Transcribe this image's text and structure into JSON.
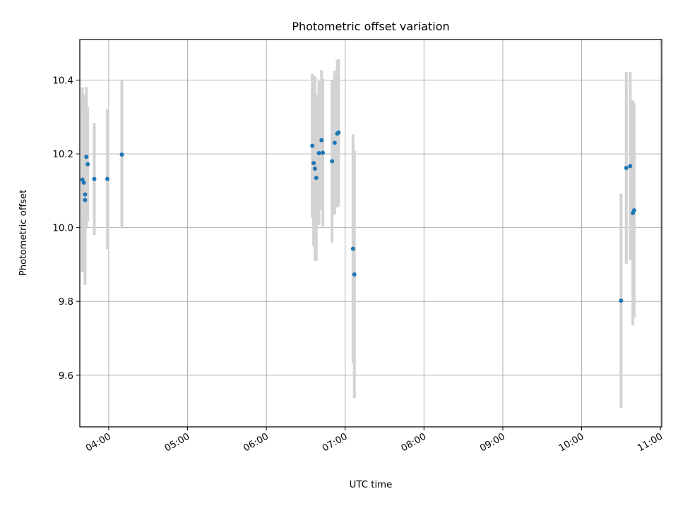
{
  "chart_data": {
    "type": "scatter",
    "title": "Photometric offset variation",
    "xlabel": "UTC time",
    "ylabel": "Photometric offset",
    "x_ticks": [
      "04:00",
      "05:00",
      "06:00",
      "07:00",
      "08:00",
      "09:00",
      "10:00",
      "11:00"
    ],
    "y_ticks": [
      "9.6",
      "9.8",
      "10.0",
      "10.2",
      "10.4"
    ],
    "y_tick_values": [
      9.6,
      9.8,
      10.0,
      10.2,
      10.4
    ],
    "xlim": [
      "03:38",
      "11:01"
    ],
    "ylim": [
      9.46,
      10.51
    ],
    "grid": true,
    "marker_color": "#1f77b4",
    "errorbar_color": "#d3d3d3",
    "points": [
      {
        "x": "03:40",
        "y": 10.13,
        "err": 0.25
      },
      {
        "x": "03:41",
        "y": 10.122,
        "err": 0.24
      },
      {
        "x": "03:42",
        "y": 10.09,
        "err": 0.2
      },
      {
        "x": "03:42",
        "y": 10.075,
        "err": 0.23
      },
      {
        "x": "03:43",
        "y": 10.192,
        "err": 0.19
      },
      {
        "x": "03:44",
        "y": 10.172,
        "err": 0.155
      },
      {
        "x": "03:49",
        "y": 10.132,
        "err": 0.152
      },
      {
        "x": "03:59",
        "y": 10.132,
        "err": 0.19
      },
      {
        "x": "04:10",
        "y": 10.198,
        "err": 0.2
      },
      {
        "x": "06:35",
        "y": 10.222,
        "err": 0.195
      },
      {
        "x": "06:36",
        "y": 10.175,
        "err": 0.225
      },
      {
        "x": "06:37",
        "y": 10.16,
        "err": 0.25
      },
      {
        "x": "06:38",
        "y": 10.135,
        "err": 0.225
      },
      {
        "x": "06:40",
        "y": 10.202,
        "err": 0.195
      },
      {
        "x": "06:42",
        "y": 10.237,
        "err": 0.19
      },
      {
        "x": "06:43",
        "y": 10.203,
        "err": 0.2
      },
      {
        "x": "06:50",
        "y": 10.18,
        "err": 0.22
      },
      {
        "x": "06:52",
        "y": 10.23,
        "err": 0.195
      },
      {
        "x": "06:54",
        "y": 10.255,
        "err": 0.2
      },
      {
        "x": "06:55",
        "y": 10.258,
        "err": 0.2
      },
      {
        "x": "07:06",
        "y": 9.943,
        "err": 0.31
      },
      {
        "x": "07:07",
        "y": 9.873,
        "err": 0.335
      },
      {
        "x": "10:30",
        "y": 9.802,
        "err": 0.29
      },
      {
        "x": "10:34",
        "y": 10.162,
        "err": 0.26
      },
      {
        "x": "10:37",
        "y": 10.167,
        "err": 0.255
      },
      {
        "x": "10:39",
        "y": 10.04,
        "err": 0.305
      },
      {
        "x": "10:40",
        "y": 10.047,
        "err": 0.29
      }
    ]
  }
}
